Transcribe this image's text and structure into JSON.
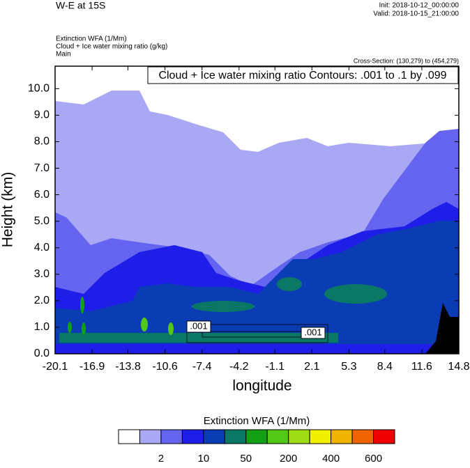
{
  "chart_data": {
    "type": "contour",
    "title": "W-E at 15S",
    "init": "Init: 2018-10-12_00:00:00",
    "valid": "Valid: 2018-10-15_21:00:00",
    "field_labels": [
      "Extinction WFA   (1/Mm)",
      "Cloud + Ice water mixing ratio   (g/kg)",
      "Main"
    ],
    "cross_section": "Cross-Section: (130,279) to (454,279)",
    "contour_info": "Cloud + Ice water mixing ratio Contours: .001 to .1 by .099",
    "contour_labels": [
      ".001",
      ".001"
    ],
    "xlabel": "longitude",
    "ylabel": "Height (km)",
    "xlim": [
      -20.1,
      14.8
    ],
    "xticks": [
      -20.1,
      -16.9,
      -13.8,
      -10.6,
      -7.4,
      -4.2,
      -1.1,
      2.1,
      5.3,
      8.4,
      11.6,
      14.8
    ],
    "ylim": [
      0,
      10.85
    ],
    "yticks": [
      {
        "value": 0,
        "label": "0.0"
      },
      {
        "value": 1,
        "label": "1.0"
      },
      {
        "value": 2,
        "label": "2.0"
      },
      {
        "value": 3,
        "label": "3.0"
      },
      {
        "value": 4,
        "label": "4.0"
      },
      {
        "value": 5,
        "label": "5.0"
      },
      {
        "value": 6,
        "label": "6.0"
      },
      {
        "value": 7,
        "label": "7.0"
      },
      {
        "value": 8,
        "label": "8.0"
      },
      {
        "value": 9,
        "label": "9.0"
      },
      {
        "value": 10,
        "label": "10.0"
      }
    ],
    "colorbar": {
      "title": "Extinction WFA  (1/Mm)",
      "colors": [
        "#ffffff",
        "#a8a8f4",
        "#6464f0",
        "#1e1ee8",
        "#0a3cb4",
        "#0a7864",
        "#14a014",
        "#50c814",
        "#a0dc14",
        "#f0f000",
        "#f0b400",
        "#f06400",
        "#f00000"
      ],
      "levels": [
        null,
        2,
        null,
        10,
        null,
        50,
        null,
        200,
        null,
        400,
        null,
        600
      ]
    }
  }
}
